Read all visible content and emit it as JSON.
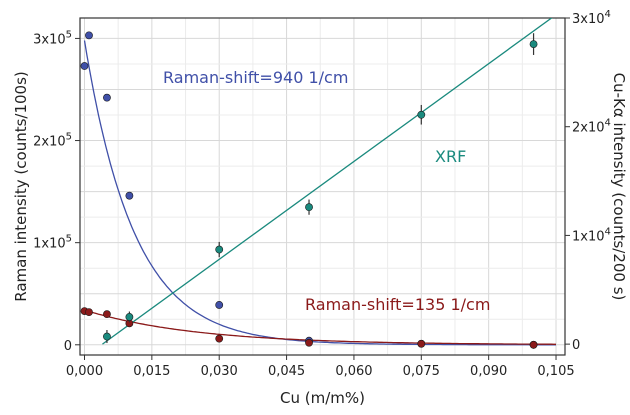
{
  "chart_data": {
    "type": "scatter",
    "xlabel": "Cu (m/m%)",
    "ylabel_left": "Raman intensity (counts/100s)",
    "ylabel_right": "Cu-Kα intensity (counts/200 s)",
    "xlim": [
      -0.001,
      0.107
    ],
    "ylim_left": [
      -10000,
      320000
    ],
    "ylim_right": [
      -1000,
      30000
    ],
    "grid": true,
    "x_tick_labels": [
      "0,000",
      "0,015",
      "0,030",
      "0,045",
      "0,060",
      "0,075",
      "0,090",
      "0,105"
    ],
    "x_tick_values": [
      0.0,
      0.015,
      0.03,
      0.045,
      0.06,
      0.075,
      0.09,
      0.105
    ],
    "y_left_ticks": [
      {
        "value": 0,
        "base": "0",
        "exp": ""
      },
      {
        "value": 100000,
        "base": "1x10",
        "exp": "5"
      },
      {
        "value": 200000,
        "base": "2x10",
        "exp": "5"
      },
      {
        "value": 300000,
        "base": "3x10",
        "exp": "5"
      }
    ],
    "y_right_ticks": [
      {
        "value": 0,
        "base": "0",
        "exp": ""
      },
      {
        "value": 10000,
        "base": "1x10",
        "exp": "4"
      },
      {
        "value": 20000,
        "base": "2x10",
        "exp": "4"
      },
      {
        "value": 30000,
        "base": "3x10",
        "exp": "4"
      }
    ],
    "annotations": [
      {
        "text": "Raman-shift=940 1/cm",
        "color": "#4050a8"
      },
      {
        "text": "XRF",
        "color": "#1a8a7e"
      },
      {
        "text": "Raman-shift=135 1/cm",
        "color": "#8b1a1a"
      }
    ],
    "series": [
      {
        "name": "Raman-shift=940 1/cm",
        "axis": "left",
        "color": "#4050a8",
        "x": [
          0.0,
          0.001,
          0.005,
          0.01,
          0.03,
          0.05,
          0.075,
          0.1
        ],
        "y": [
          273000,
          303000,
          242000,
          146000,
          39000,
          4000,
          1000,
          0
        ],
        "fit": {
          "model": "exponential",
          "amplitude": 298000,
          "rate": 90
        }
      },
      {
        "name": "Raman-shift=135 1/cm",
        "axis": "left",
        "color": "#8b1a1a",
        "x": [
          0.0,
          0.001,
          0.005,
          0.01,
          0.03,
          0.05,
          0.075,
          0.1
        ],
        "y": [
          33000,
          32000,
          30000,
          21000,
          6000,
          2000,
          1000,
          0
        ],
        "fit": {
          "model": "exponential",
          "amplitude": 34000,
          "rate": 40
        }
      },
      {
        "name": "XRF",
        "axis": "right",
        "color": "#1a8a7e",
        "x": [
          0.005,
          0.01,
          0.03,
          0.05,
          0.075,
          0.1
        ],
        "y": [
          700,
          2500,
          8700,
          12600,
          21100,
          27600
        ],
        "err": [
          600,
          500,
          700,
          700,
          900,
          1000
        ],
        "fit": {
          "model": "linear",
          "slope": 300000,
          "intercept": -1200
        }
      }
    ]
  }
}
